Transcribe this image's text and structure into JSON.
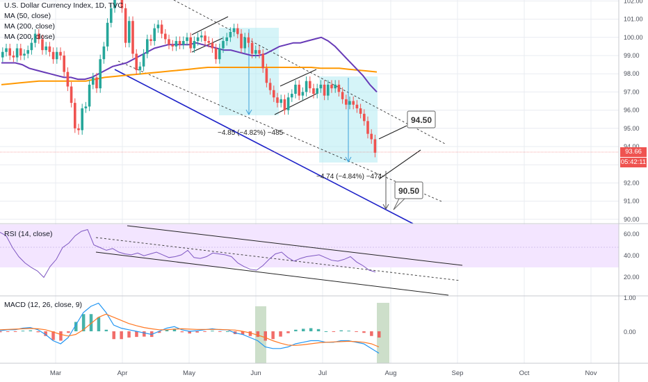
{
  "colors": {
    "up": "#26a69a",
    "down": "#ef5350",
    "ma50": "#673ab7",
    "ma200": "#ff9800",
    "trend_blue": "#1e22c8",
    "rsi": "#7e57c2",
    "rsi_band": "#f3e5ff",
    "box": "#b2ebf2",
    "grid": "#e9ecf1",
    "axis_text": "#4a4e58",
    "macd": "#2196f3",
    "signal": "#ff7722",
    "hist_up": "#26a69a",
    "hist_down": "#ef5350",
    "highlight": "#c8dcc4"
  },
  "header": {
    "title": "U.S. Dollar Currency Index, 1D, TVC",
    "indicators": [
      "MA (50, close)",
      "MA (200, close)",
      "MA (200, close)"
    ]
  },
  "price_tag": {
    "price": "93.66",
    "countdown": "05:42:11"
  },
  "annotations": {
    "target_high": "94.50",
    "target_low": "90.50",
    "drop1": "−4.85 (−4.82%) −485",
    "drop2": "−4.74 (−4.84%) −474"
  },
  "rsi_panel": {
    "label": "RSI (14, close)",
    "ticks": [
      "60.00",
      "40.00",
      "20.00"
    ]
  },
  "macd_panel": {
    "label": "MACD (12, 26, close, 9)",
    "ticks": [
      "1.00",
      "0.00"
    ]
  },
  "chart_data": {
    "type": "candlestick",
    "title": "U.S. Dollar Currency Index, 1D, TVC",
    "x_labels": [
      "Mar",
      "Apr",
      "May",
      "Jun",
      "Jul",
      "Aug",
      "Sep",
      "Oct",
      "Nov"
    ],
    "y_ticks": [
      102,
      101,
      100,
      99,
      98,
      97,
      96,
      95,
      94,
      93,
      92,
      91,
      90
    ],
    "ylim": [
      89.8,
      102.2
    ],
    "last_price": 93.66,
    "close": [
      99.2,
      99.4,
      99.0,
      98.9,
      99.4,
      99.0,
      99.1,
      99.3,
      99.7,
      100.2,
      99.9,
      99.3,
      99.5,
      99.2,
      98.8,
      99.2,
      99.0,
      98.1,
      97.3,
      96.4,
      95.0,
      94.9,
      96.1,
      96.2,
      97.4,
      97.8,
      97.2,
      98.8,
      99.5,
      100.8,
      101.6,
      102.7,
      102.4,
      101.6,
      99.7,
      100.9,
      99.1,
      98.2,
      98.4,
      99.1,
      99.9,
      99.8,
      100.5,
      100.7,
      100.2,
      99.9,
      99.6,
      99.5,
      99.8,
      99.6,
      99.8,
      100.0,
      99.4,
      99.8,
      100.0,
      100.1,
      99.8,
      99.7,
      99.4,
      98.8,
      99.4,
      99.8,
      100.0,
      100.3,
      100.5,
      100.2,
      99.4,
      100.0,
      99.7,
      99.1,
      99.3,
      99.1,
      98.3,
      97.5,
      97.1,
      96.7,
      96.4,
      96.6,
      96.0,
      96.7,
      96.9,
      97.4,
      96.8,
      97.0,
      97.6,
      97.2,
      96.9,
      97.2,
      97.4,
      96.8,
      97.4,
      97.2,
      97.4,
      97.0,
      96.6,
      96.3,
      96.5,
      96.3,
      96.1,
      95.8,
      95.4,
      94.7,
      94.4,
      93.66
    ],
    "ma50": [
      98.6,
      98.6,
      98.6,
      98.5,
      98.3,
      98.2,
      98.1,
      98.0,
      97.9,
      97.8,
      97.8,
      97.7,
      97.7,
      97.8,
      98.0,
      98.2,
      98.4,
      98.5,
      98.6,
      98.8,
      99.0,
      99.2,
      99.4,
      99.5,
      99.6,
      99.6,
      99.6,
      99.6,
      99.7,
      99.6,
      99.5,
      99.4,
      99.3,
      99.3,
      99.2,
      99.1,
      99.0,
      99.0,
      99.1,
      99.3,
      99.5,
      99.6,
      99.7,
      99.7,
      99.8,
      99.9,
      100.0,
      99.8,
      99.5,
      99.1,
      98.7,
      98.3,
      97.9,
      97.4,
      97.0
    ],
    "ma200": [
      97.4,
      97.45,
      97.5,
      97.55,
      97.6,
      97.6,
      97.6,
      97.6,
      97.6,
      97.6,
      97.7,
      97.8,
      97.85,
      97.9,
      97.95,
      98.0,
      98.05,
      98.1,
      98.15,
      98.2,
      98.25,
      98.3,
      98.35,
      98.35,
      98.35,
      98.35,
      98.35,
      98.35,
      98.35,
      98.35,
      98.35,
      98.35,
      98.35,
      98.35,
      98.3,
      98.3,
      98.3,
      98.25,
      98.2,
      98.15,
      98.1
    ],
    "rsi": [
      72,
      68,
      55,
      45,
      38,
      33,
      29,
      22,
      34,
      42,
      55,
      60,
      68,
      73,
      75,
      58,
      55,
      52,
      54,
      50,
      48,
      47,
      49,
      46,
      48,
      50,
      47,
      44,
      45,
      47,
      52,
      44,
      43,
      45,
      49,
      48,
      47,
      45,
      38,
      34,
      31,
      30,
      35,
      42,
      48,
      50,
      44,
      40,
      43,
      45,
      46,
      47,
      44,
      41,
      40,
      42,
      45,
      39,
      35,
      30,
      28
    ],
    "macd": [
      0.02,
      0.05,
      0.05,
      0.1,
      0.12,
      0.05,
      -0.1,
      -0.3,
      -0.4,
      -0.2,
      0.2,
      0.6,
      0.8,
      0.9,
      0.6,
      0.2,
      0.1,
      0.05,
      0.0,
      -0.05,
      -0.1,
      0.0,
      0.1,
      0.15,
      0.05,
      0.0,
      0.02,
      0.05,
      0.08,
      0.05,
      0.05,
      -0.05,
      -0.1,
      -0.2,
      -0.3,
      -0.5,
      -0.55,
      -0.55,
      -0.5,
      -0.4,
      -0.35,
      -0.3,
      -0.3,
      -0.35,
      -0.35,
      -0.3,
      -0.3,
      -0.35,
      -0.4,
      -0.55,
      -0.7
    ],
    "signal": [
      0.05,
      0.06,
      0.07,
      0.08,
      0.09,
      0.08,
      0.05,
      -0.02,
      -0.1,
      -0.15,
      -0.1,
      0.05,
      0.25,
      0.45,
      0.55,
      0.45,
      0.35,
      0.25,
      0.18,
      0.12,
      0.08,
      0.05,
      0.05,
      0.07,
      0.08,
      0.07,
      0.06,
      0.06,
      0.06,
      0.06,
      0.05,
      0.04,
      0.0,
      -0.05,
      -0.12,
      -0.2,
      -0.3,
      -0.38,
      -0.44,
      -0.45,
      -0.43,
      -0.4,
      -0.37,
      -0.35,
      -0.34,
      -0.33,
      -0.32,
      -0.33,
      -0.35,
      -0.4,
      -0.5
    ]
  }
}
